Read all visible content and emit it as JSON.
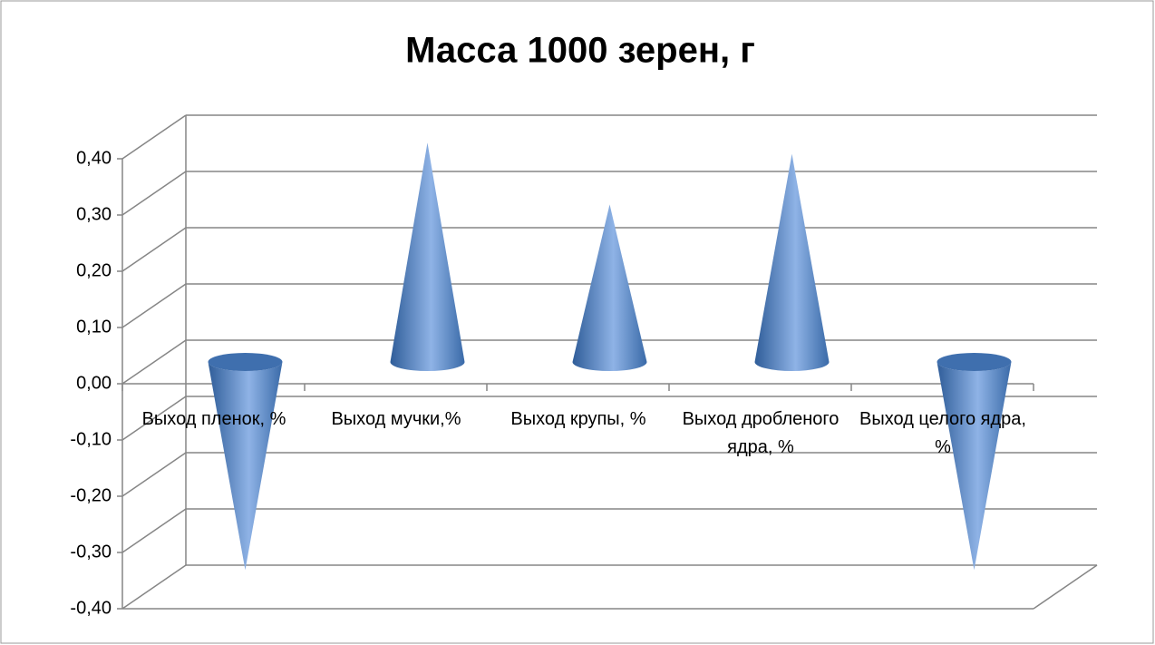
{
  "chart_data": {
    "type": "cone3d",
    "title": "Масса 1000 зерен, г",
    "categories": [
      "Выход пленок, %",
      "Выход мучки,%",
      "Выход крупы, %",
      "Выход дробленого ядра, %",
      "Выход целого ядра, %"
    ],
    "values": [
      -0.37,
      0.39,
      0.28,
      0.37,
      -0.37
    ],
    "color": "#4f81bd",
    "ylim": [
      -0.4,
      0.4
    ],
    "yticks": [
      {
        "value": -0.4,
        "label": "-0,40"
      },
      {
        "value": -0.3,
        "label": "-0,30"
      },
      {
        "value": -0.2,
        "label": "-0,20"
      },
      {
        "value": -0.1,
        "label": "-0,10"
      },
      {
        "value": 0,
        "label": "0,00"
      },
      {
        "value": 0.1,
        "label": "0,10"
      },
      {
        "value": 0.2,
        "label": "0,20"
      },
      {
        "value": 0.3,
        "label": "0,30"
      },
      {
        "value": 0.4,
        "label": "0,40"
      }
    ],
    "grid": true
  }
}
